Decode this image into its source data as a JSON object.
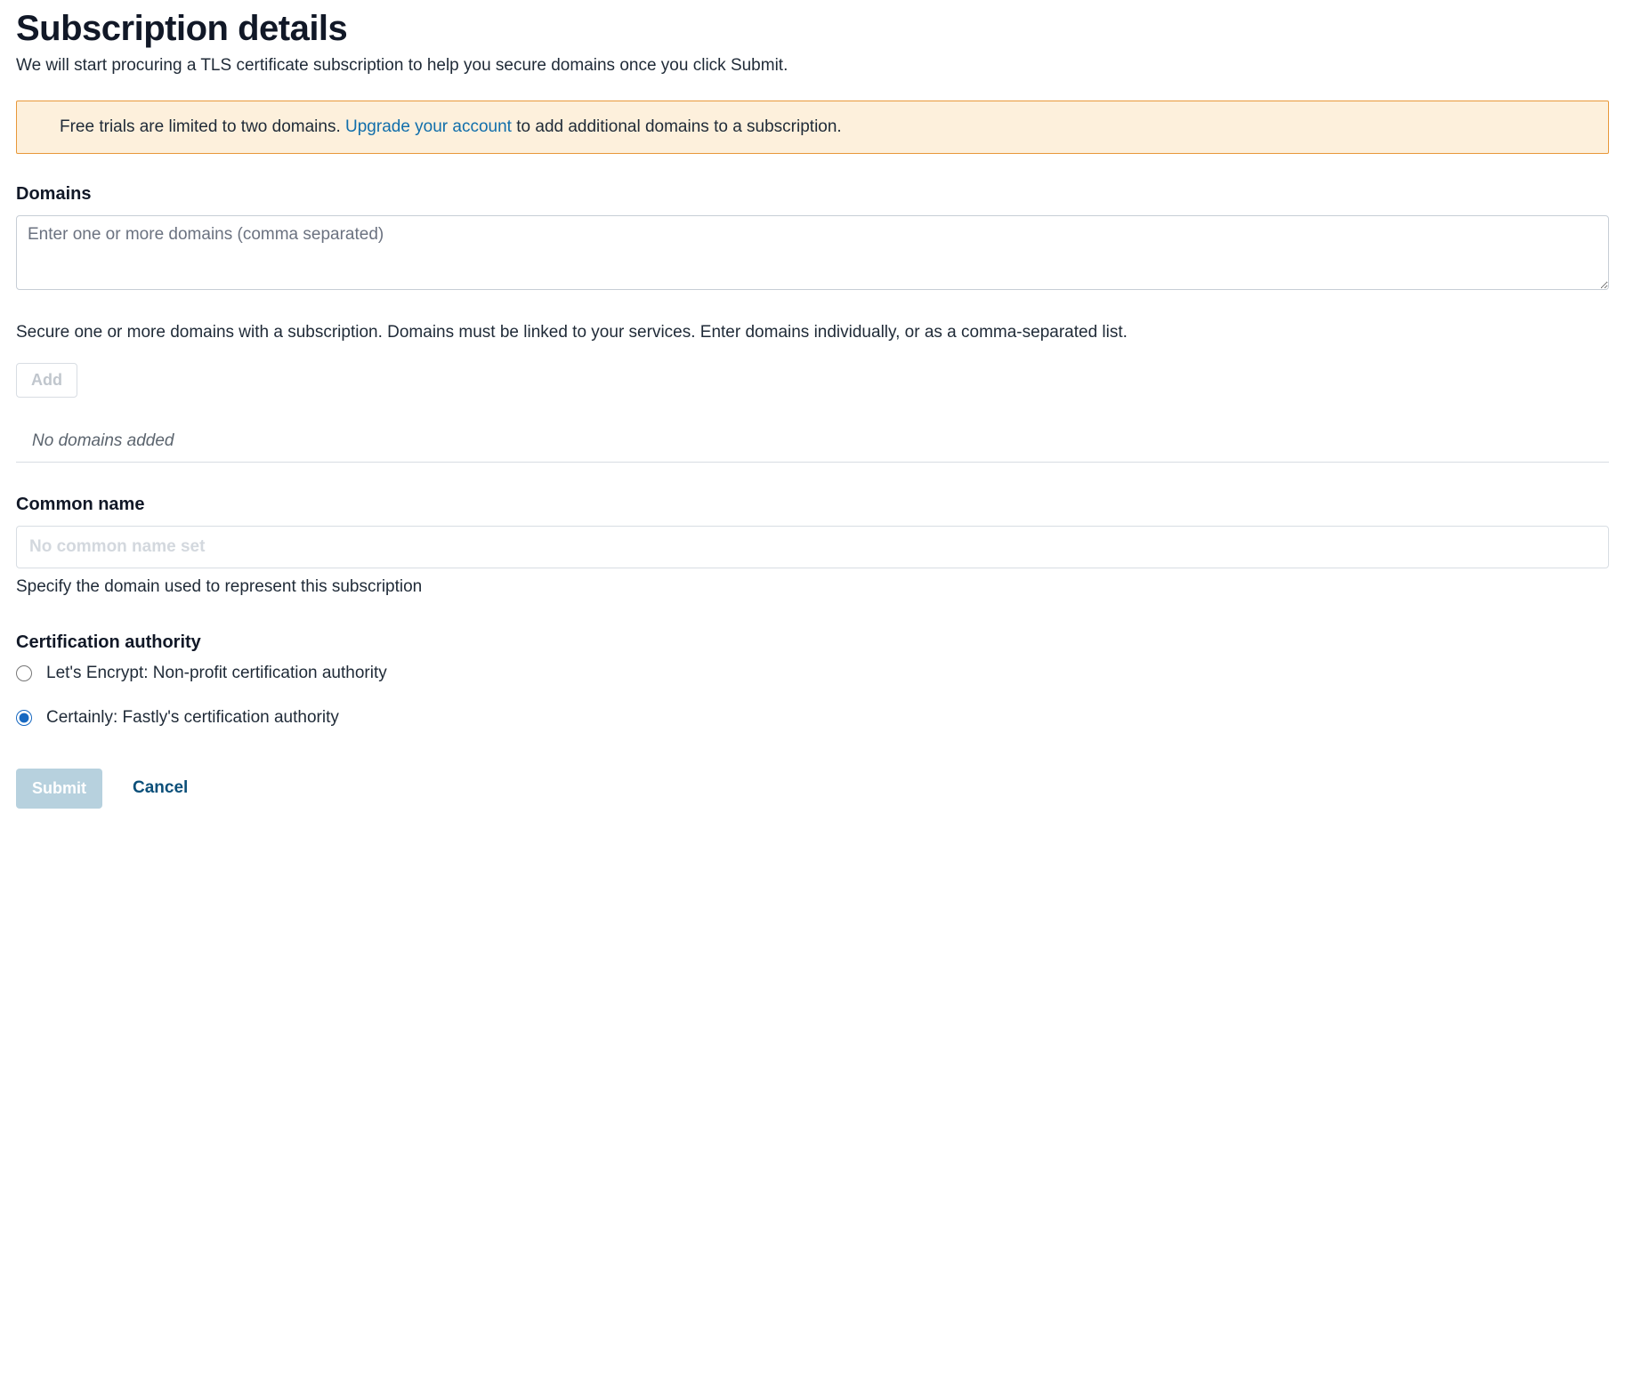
{
  "header": {
    "title": "Subscription details",
    "subtitle": "We will start procuring a TLS certificate subscription to help you secure domains once you click Submit."
  },
  "alert": {
    "text_before": "Free trials are limited to two domains. ",
    "link_text": "Upgrade your account",
    "text_after": " to add additional domains to a subscription.",
    "background_color": "#fdf0dc",
    "border_color": "#e8983a",
    "link_color": "#116eab"
  },
  "domains": {
    "label": "Domains",
    "placeholder": "Enter one or more domains (comma separated)",
    "help": "Secure one or more domains with a subscription. Domains must be linked to your services. Enter domains individually, or as a comma-separated list.",
    "add_label": "Add",
    "empty_text": "No domains added"
  },
  "common_name": {
    "label": "Common name",
    "placeholder": "No common name set",
    "help": "Specify the domain used to represent this subscription"
  },
  "cert_authority": {
    "label": "Certification authority",
    "options": [
      {
        "label": "Let's Encrypt: Non-profit certification authority",
        "selected": false
      },
      {
        "label": "Certainly: Fastly's certification authority",
        "selected": true
      }
    ],
    "accent_color": "#1668c1"
  },
  "actions": {
    "submit_label": "Submit",
    "cancel_label": "Cancel",
    "submit_bg": "#b7d1de",
    "cancel_color": "#0b4f79"
  }
}
